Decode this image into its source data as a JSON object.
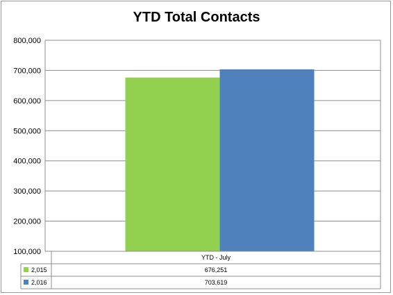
{
  "chart_data": {
    "type": "bar",
    "title": "YTD Total Contacts",
    "categories": [
      "YTD - July"
    ],
    "series": [
      {
        "name": "2,015",
        "values": [
          676251
        ],
        "value_labels": [
          "676,251"
        ],
        "color": "#92d050"
      },
      {
        "name": "2,016",
        "values": [
          703619
        ],
        "value_labels": [
          "703,619"
        ],
        "color": "#4f81bd"
      }
    ],
    "ylim": [
      100000,
      800000
    ],
    "y_ticks": [
      "100,000",
      "200,000",
      "300,000",
      "400,000",
      "500,000",
      "600,000",
      "700,000",
      "800,000"
    ],
    "grid": true,
    "legend": "data-table"
  }
}
